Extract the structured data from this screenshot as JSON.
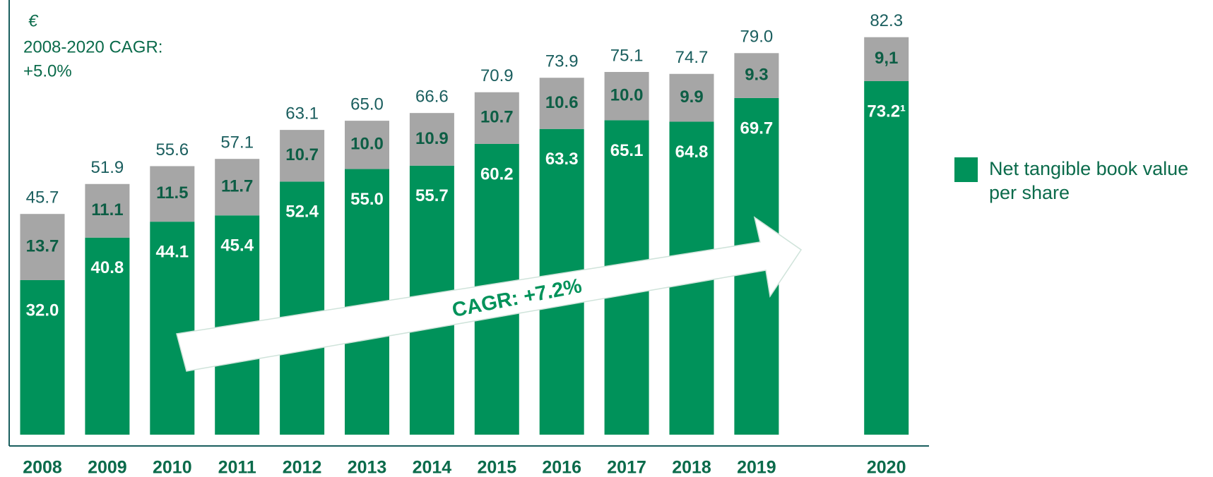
{
  "chart_data": {
    "type": "bar",
    "stacked": true,
    "categories": [
      "2008",
      "2009",
      "2010",
      "2011",
      "2012",
      "2013",
      "2014",
      "2015",
      "2016",
      "2017",
      "2018",
      "2019",
      "2020"
    ],
    "series": [
      {
        "name": "Net tangible book value per share",
        "color": "#00925a",
        "values": [
          32.0,
          40.8,
          44.1,
          45.4,
          52.4,
          55.0,
          55.7,
          60.2,
          63.3,
          65.1,
          64.8,
          69.7,
          73.2
        ],
        "value_labels": [
          "32.0",
          "40.8",
          "44.1",
          "45.4",
          "52.4",
          "55.0",
          "55.7",
          "60.2",
          "63.3",
          "65.1",
          "64.8",
          "69.7",
          "73.2¹"
        ]
      },
      {
        "color": "#a6a6a6",
        "values": [
          13.7,
          11.1,
          11.5,
          11.7,
          10.7,
          10.0,
          10.9,
          10.7,
          10.6,
          10.0,
          9.9,
          9.3,
          9.1
        ],
        "value_labels": [
          "13.7",
          "11.1",
          "11.5",
          "11.7",
          "10.7",
          "10.0",
          "10.9",
          "10.7",
          "10.6",
          "10.0",
          "9.9",
          "9.3",
          "9,1"
        ]
      }
    ],
    "totals": {
      "values": [
        45.7,
        51.9,
        55.6,
        57.1,
        63.1,
        65.0,
        66.6,
        70.9,
        73.9,
        75.1,
        74.7,
        79.0,
        82.3
      ],
      "value_labels": [
        "45.7",
        "51.9",
        "55.6",
        "57.1",
        "63.1",
        "65.0",
        "66.6",
        "70.9",
        "73.9",
        "75.1",
        "74.7",
        "79.0",
        "82.3"
      ]
    },
    "annotations": [
      "€",
      "2008-2020 CAGR:",
      "+5.0%",
      "CAGR: +7.2%"
    ],
    "ylim": [
      0,
      90
    ],
    "legend": "right"
  }
}
